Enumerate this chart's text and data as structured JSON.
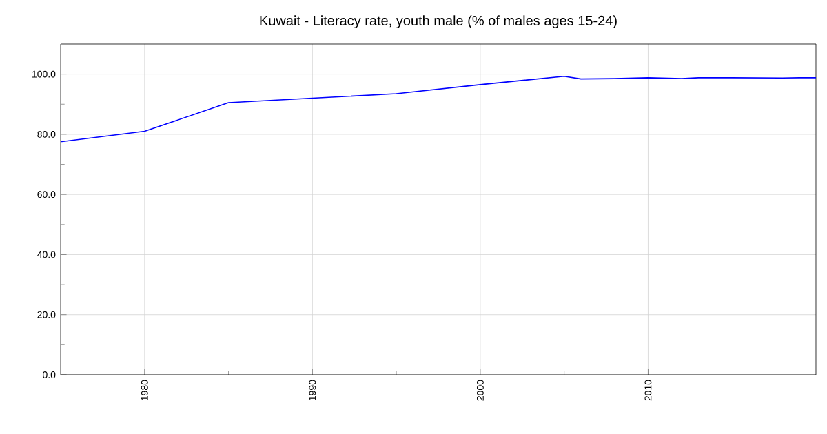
{
  "chart_data": {
    "type": "line",
    "title": "Kuwait - Literacy rate, youth male (% of males ages 15-24)",
    "x": [
      1975,
      1980,
      1985,
      1990,
      1995,
      2000,
      2005,
      2006,
      2008,
      2010,
      2012,
      2013,
      2015,
      2018,
      2019,
      2020
    ],
    "series": [
      {
        "color": "#0000ff",
        "values": [
          77.5,
          81.0,
          90.5,
          92.0,
          93.5,
          96.5,
          99.3,
          98.4,
          98.5,
          98.8,
          98.5,
          98.8,
          98.8,
          98.7,
          98.8,
          98.8
        ]
      }
    ],
    "xlim": [
      1975,
      2020
    ],
    "xticks": [
      1980,
      1990,
      2000,
      2010
    ],
    "ylim": [
      0,
      110
    ],
    "yticks": [
      {
        "value": 0,
        "label": "0.0"
      },
      {
        "value": 20,
        "label": "20.0"
      },
      {
        "value": 40,
        "label": "40.0"
      },
      {
        "value": 60,
        "label": "60.0"
      },
      {
        "value": 80,
        "label": "80.0"
      },
      {
        "value": 100,
        "label": "100.0"
      }
    ],
    "grid": true,
    "marker": "none",
    "line_style": "solid"
  }
}
